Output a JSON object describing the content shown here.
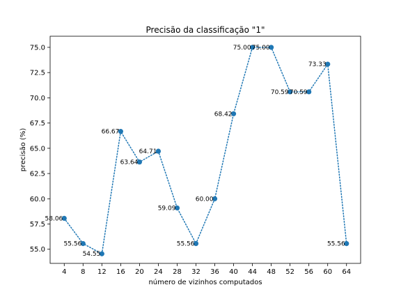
{
  "chart_data": {
    "type": "line",
    "title": "Precisão da classificação \"1\"",
    "xlabel": "número de vizinhos computados",
    "ylabel": "precisão (%)",
    "x": [
      4,
      8,
      12,
      16,
      20,
      24,
      28,
      32,
      36,
      40,
      44,
      48,
      52,
      56,
      60,
      64
    ],
    "y": [
      58.06,
      55.56,
      54.55,
      66.67,
      63.64,
      64.71,
      59.09,
      55.56,
      60.0,
      68.42,
      75.0,
      75.0,
      70.59,
      70.59,
      73.33,
      55.56
    ],
    "point_labels": [
      "58.06",
      "55.56",
      "54.55",
      "66.67",
      "63.64",
      "64.71",
      "59.09",
      "55.56",
      "60.00",
      "68.42",
      "75.00",
      "75.00",
      "70.59",
      "70.59",
      "73.33",
      "55.56"
    ],
    "xticks": [
      "4",
      "8",
      "12",
      "16",
      "20",
      "24",
      "28",
      "32",
      "36",
      "40",
      "44",
      "48",
      "52",
      "56",
      "60",
      "64"
    ],
    "yticks": [
      "55.0",
      "57.5",
      "60.0",
      "62.5",
      "65.0",
      "67.5",
      "70.0",
      "72.5",
      "75.0"
    ],
    "xlim": [
      1,
      67
    ],
    "ylim": [
      53.6,
      76.1
    ],
    "line_style": "dotted",
    "marker": "circle",
    "grid": false,
    "color": "#1f77b4"
  }
}
